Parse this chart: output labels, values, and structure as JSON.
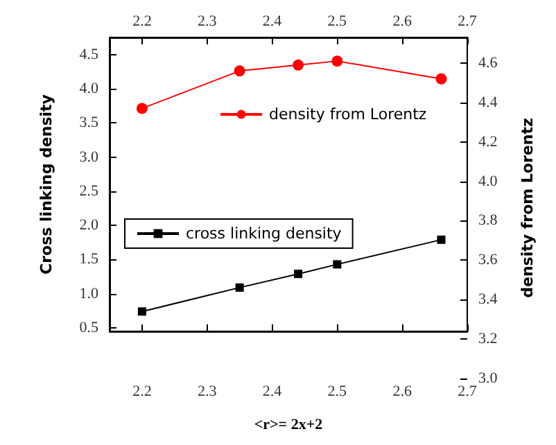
{
  "chart_data": {
    "type": "line",
    "xlabel": "<r>= 2x+2",
    "ylabel": "Cross linking density",
    "y2label": "density from Lorentz",
    "x": [
      2.2,
      2.35,
      2.44,
      2.5,
      2.66
    ],
    "series": [
      {
        "name": "density from Lorentz",
        "color": "#ff0000",
        "axis": "y2",
        "marker": "circle",
        "values": [
          4.37,
          4.56,
          4.59,
          4.61,
          4.52
        ]
      },
      {
        "name": "cross linking density",
        "color": "#000000",
        "marker": "square",
        "values": [
          0.74,
          1.09,
          1.29,
          1.43,
          1.79
        ]
      }
    ],
    "xlim": [
      2.15,
      2.7
    ],
    "xticks": [
      2.2,
      2.3,
      2.4,
      2.5,
      2.6,
      2.7
    ],
    "x2lim": [
      2.15,
      2.7
    ],
    "x2ticks": [
      2.2,
      2.3,
      2.4,
      2.5,
      2.6,
      2.7
    ],
    "ylim": [
      0.45,
      4.75
    ],
    "yticks": [
      0.5,
      {
        "value": 1,
        "label": "1.0"
      },
      1.5,
      {
        "value": 2,
        "label": "2.0"
      },
      2.5,
      {
        "value": 3,
        "label": "3.0"
      },
      3.5,
      {
        "value": 4,
        "label": "4.0"
      },
      4.5
    ],
    "y2lim": [
      3.0,
      4.73
    ],
    "y2ticks": [
      {
        "value": 3,
        "label": "3.0"
      },
      3.2,
      3.4,
      3.6,
      3.8,
      {
        "value": 4,
        "label": "4.0"
      },
      4.2,
      4.4,
      4.6
    ],
    "grid": false,
    "legend": "center",
    "line_style": "solid"
  }
}
